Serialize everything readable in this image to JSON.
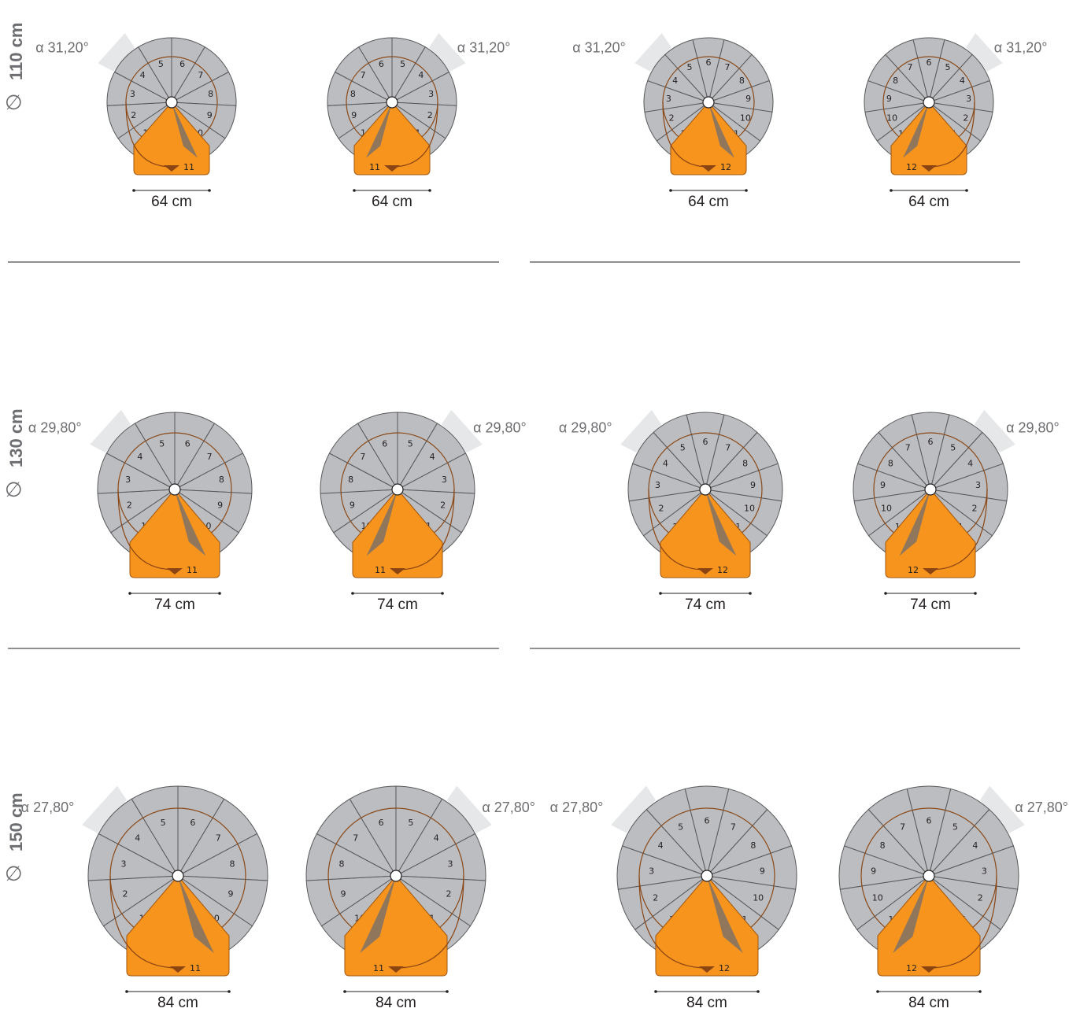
{
  "symbols": {
    "diameter": "∅",
    "alpha": "α"
  },
  "colors": {
    "tread": "#bcbdc0",
    "tread_stroke": "#58595b",
    "landing": "#f7941d",
    "landing_stroke": "#a0560f",
    "shadow": "#6d6e71",
    "guide_circle": "#8a4a1a",
    "arrow": "#8b4513",
    "angle_wedge": "#e6e7e8",
    "text": "#6d6e71",
    "divider": "#231f20"
  },
  "rows": [
    {
      "diameter_label": "110 cm",
      "angle_label": "31,20°",
      "width_label": "64 cm",
      "variants": [
        {
          "direction": "left",
          "steps": 11,
          "landing_number": "11"
        },
        {
          "direction": "right",
          "steps": 11,
          "landing_number": "11"
        },
        {
          "direction": "left",
          "steps": 12,
          "landing_number": "12"
        },
        {
          "direction": "right",
          "steps": 12,
          "landing_number": "12"
        }
      ]
    },
    {
      "diameter_label": "130 cm",
      "angle_label": "29,80°",
      "width_label": "74 cm",
      "variants": [
        {
          "direction": "left",
          "steps": 11,
          "landing_number": "11"
        },
        {
          "direction": "right",
          "steps": 11,
          "landing_number": "11"
        },
        {
          "direction": "left",
          "steps": 12,
          "landing_number": "12"
        },
        {
          "direction": "right",
          "steps": 12,
          "landing_number": "12"
        }
      ]
    },
    {
      "diameter_label": "150 cm",
      "angle_label": "27,80°",
      "width_label": "84 cm",
      "variants": [
        {
          "direction": "left",
          "steps": 11,
          "landing_number": "11"
        },
        {
          "direction": "right",
          "steps": 11,
          "landing_number": "11"
        },
        {
          "direction": "left",
          "steps": 12,
          "landing_number": "12"
        },
        {
          "direction": "right",
          "steps": 12,
          "landing_number": "12"
        }
      ]
    }
  ]
}
